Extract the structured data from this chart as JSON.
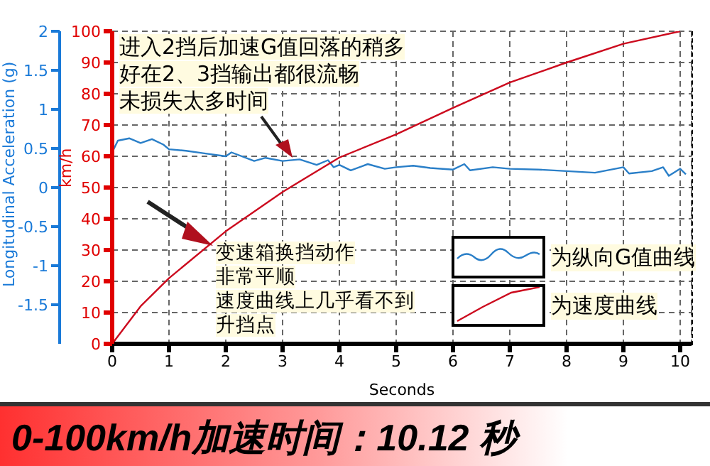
{
  "chart_data": {
    "type": "line",
    "title": "0-100km/h加速时间：10.12 秒",
    "xlabel": "Seconds",
    "ylabel": "km/h",
    "y2label": "Longitudinal Acceleration (g)",
    "xlim": [
      0,
      10.2
    ],
    "xticks": [
      0,
      1,
      2,
      3,
      4,
      5,
      6,
      7,
      8,
      9,
      10
    ],
    "ylim": [
      0,
      100
    ],
    "yticks": [
      0,
      10,
      20,
      30,
      40,
      50,
      60,
      70,
      80,
      90,
      100
    ],
    "y2lim": [
      -2,
      2
    ],
    "y2ticks": [
      -1.5,
      -1,
      -0.5,
      0,
      0.5,
      1,
      1.5,
      2
    ],
    "grid": true,
    "legend": "bottom right",
    "line_style": "solid",
    "marker": "none",
    "annotations": [
      "进入2挡后加速G值回落的稍多好在2、3挡输出都很流畅未损失太多时间",
      "变速箱换挡动作非常平顺速度曲线上几乎看不到升挡点"
    ],
    "series": [
      {
        "name": "为纵向G值曲线",
        "color": "#2a7fc8",
        "axis": "y2",
        "x": [
          0,
          0.1,
          0.3,
          0.5,
          0.7,
          0.9,
          1,
          1.3,
          1.6,
          2,
          2.1,
          2.5,
          2.7,
          3,
          3.3,
          3.6,
          3.8,
          3.9,
          4,
          4.2,
          4.5,
          4.8,
          5,
          5.3,
          5.6,
          6,
          6.2,
          6.3,
          6.7,
          7,
          7.5,
          8,
          8.5,
          9,
          9.1,
          9.5,
          9.7,
          9.8,
          10,
          10.1
        ],
        "values": [
          0.45,
          0.6,
          0.63,
          0.57,
          0.62,
          0.55,
          0.49,
          0.47,
          0.44,
          0.4,
          0.45,
          0.34,
          0.38,
          0.34,
          0.36,
          0.29,
          0.35,
          0.26,
          0.29,
          0.22,
          0.3,
          0.24,
          0.26,
          0.28,
          0.25,
          0.23,
          0.3,
          0.22,
          0.26,
          0.24,
          0.23,
          0.21,
          0.19,
          0.26,
          0.18,
          0.21,
          0.26,
          0.15,
          0.24,
          0.17
        ]
      },
      {
        "name": "为速度曲线",
        "color": "#cc0a1e",
        "x": [
          0,
          0.5,
          1,
          2,
          3,
          4,
          5,
          6,
          7,
          8,
          9,
          10
        ],
        "values": [
          0,
          12,
          21,
          36,
          48.6,
          59.6,
          67,
          75.5,
          83.6,
          90,
          96,
          100
        ]
      }
    ]
  }
}
